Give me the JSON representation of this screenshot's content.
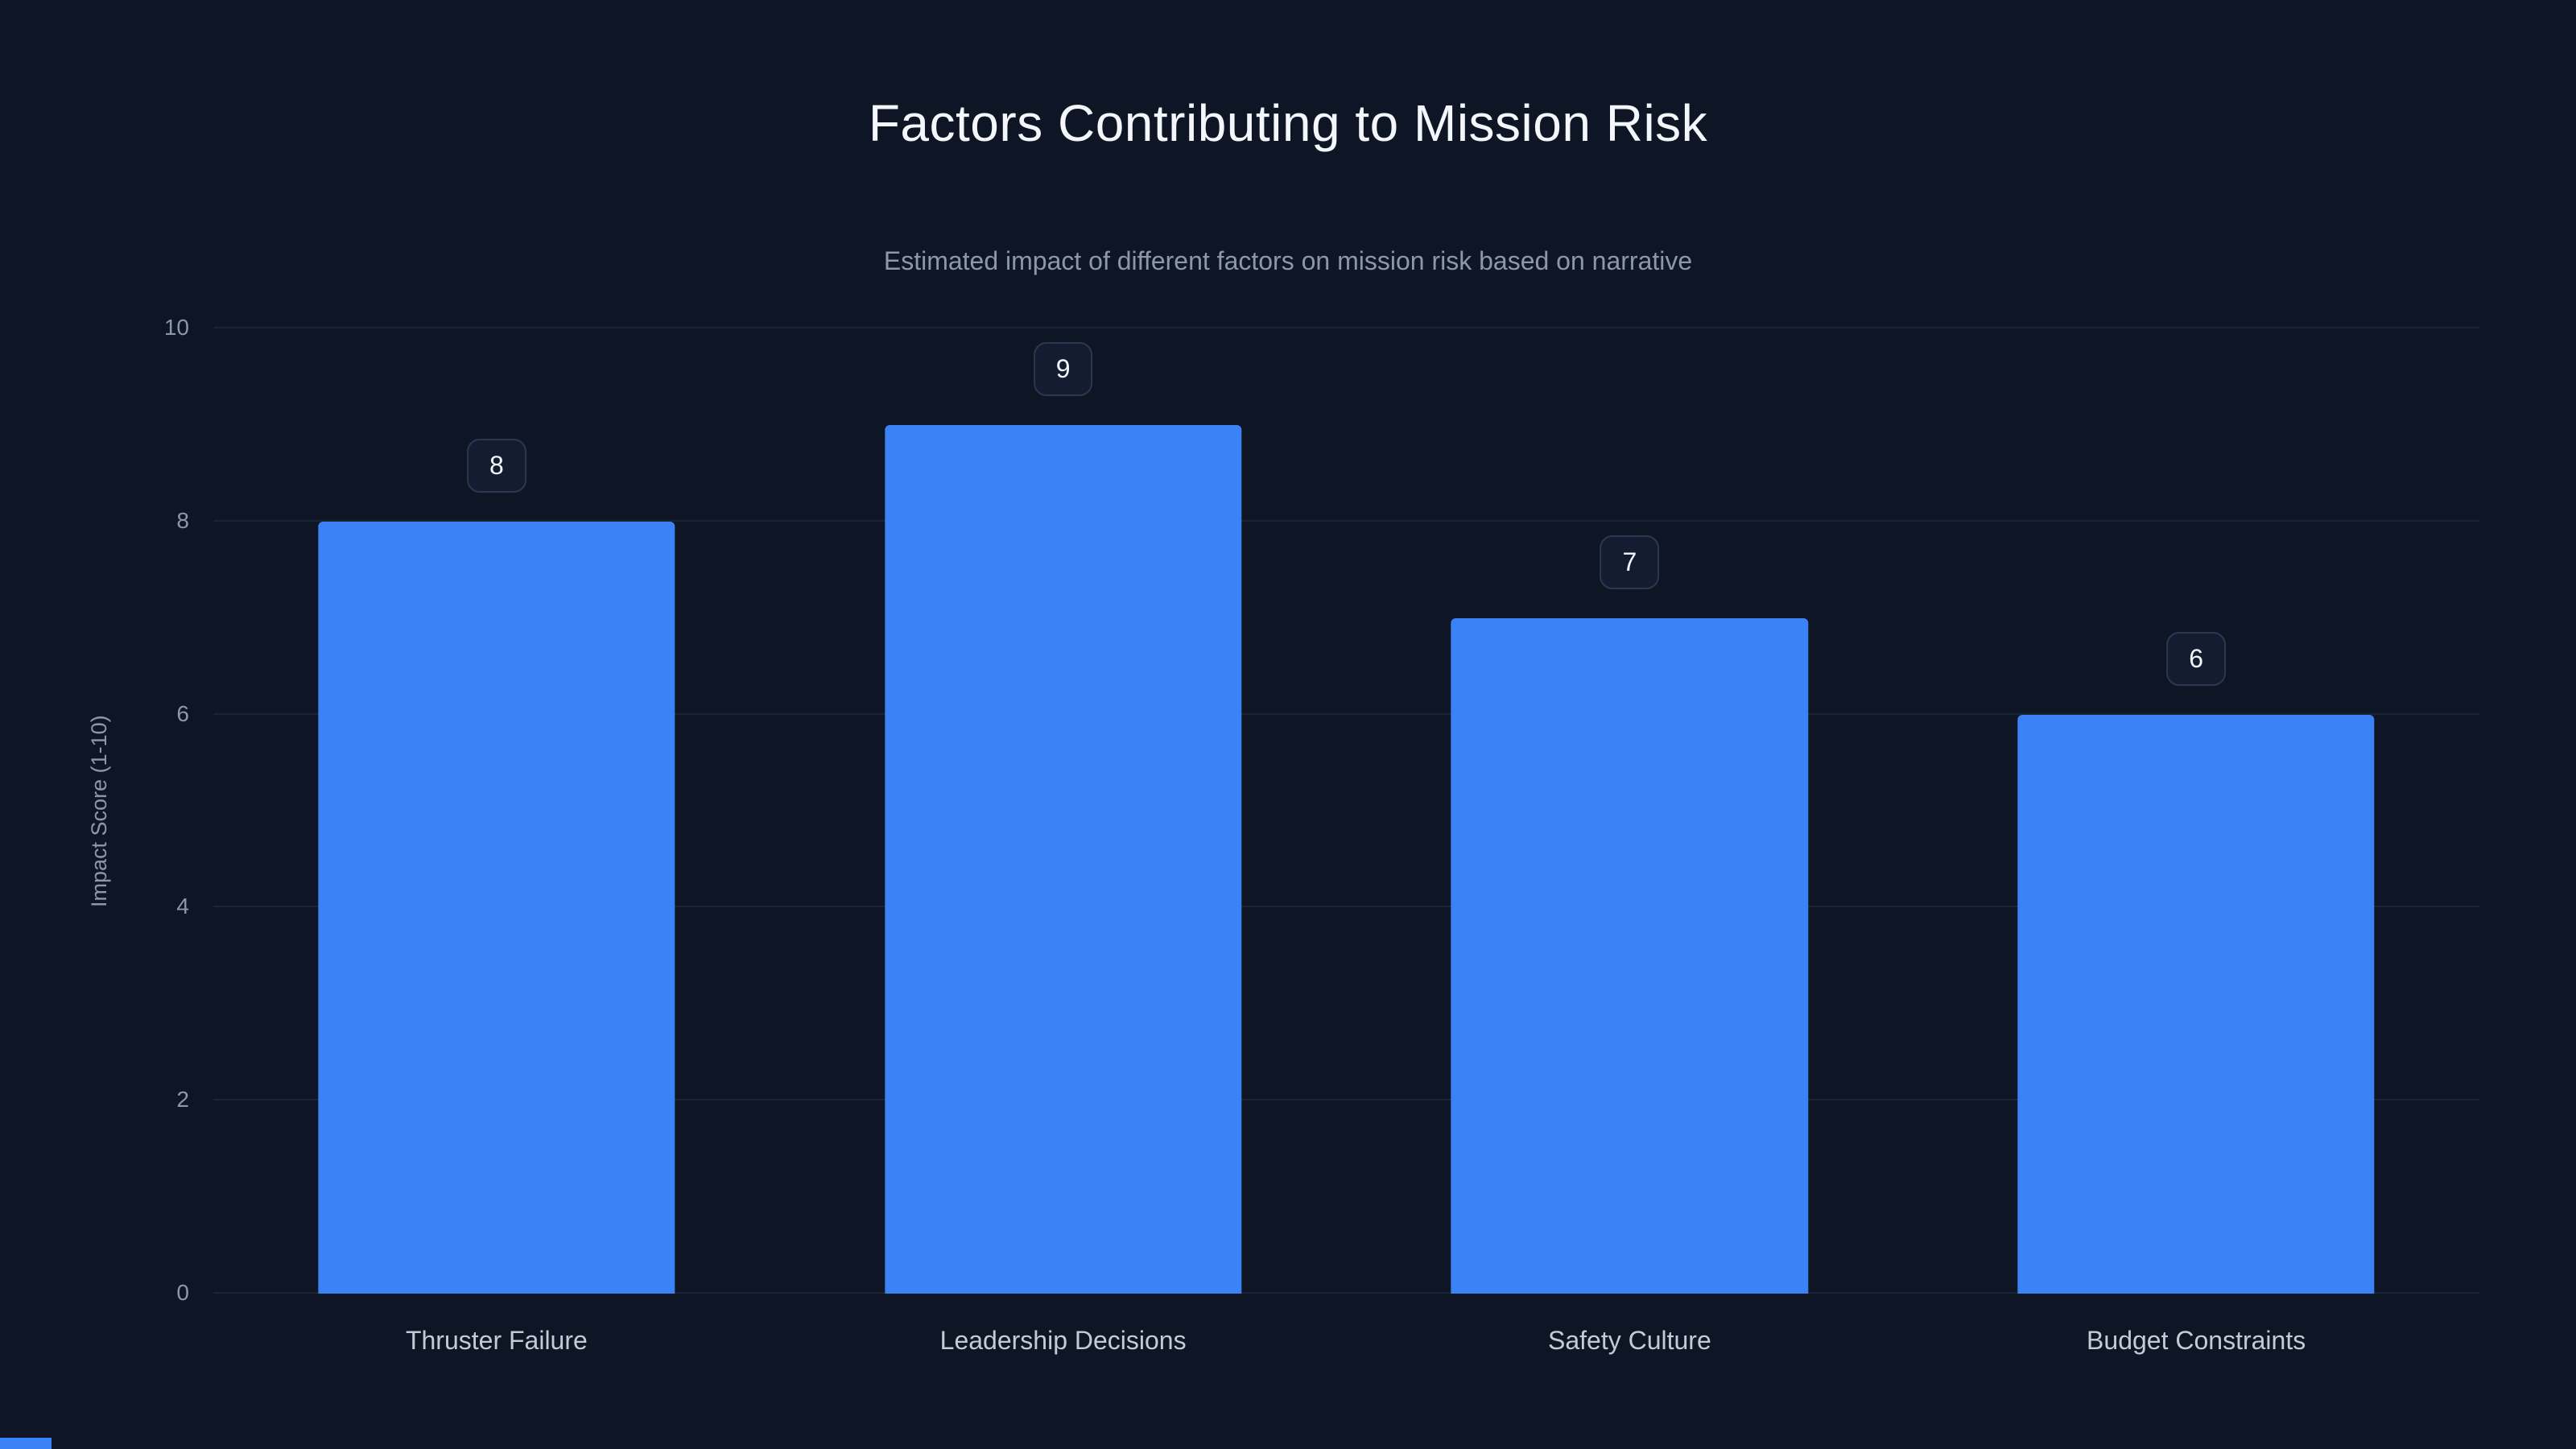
{
  "chart_data": {
    "type": "bar",
    "title": "Factors Contributing to Mission Risk",
    "subtitle": "Estimated impact of different factors on mission risk based on narrative",
    "categories": [
      "Thruster Failure",
      "Leadership Decisions",
      "Safety Culture",
      "Budget Constraints"
    ],
    "values": [
      8,
      9,
      7,
      6
    ],
    "xlabel": "",
    "ylabel": "Impact Score (1-10)",
    "ylim": [
      0,
      10
    ],
    "yticks": [
      0,
      2,
      4,
      6,
      8,
      10
    ],
    "grid": true,
    "legend": false,
    "value_labels": true,
    "bar_color": "#3b82f6",
    "background_color": "#0e1626",
    "title_color": "#f3f6fb",
    "subtitle_color": "#8d97ab",
    "tick_color": "#8d97ab",
    "category_label_color": "#c3cbd9",
    "gridline_color": "rgba(148,163,184,0.10)"
  }
}
